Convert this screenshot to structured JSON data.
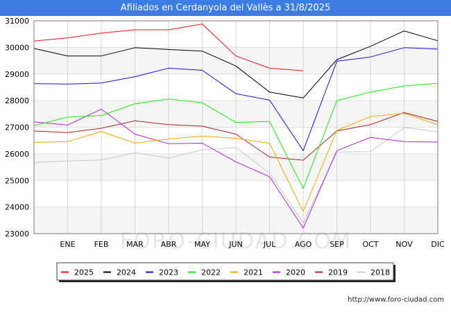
{
  "chart_data": {
    "type": "line",
    "title": "Afiliados en Cerdanyola del Vallès a 31/8/2025",
    "categories": [
      "",
      "ENE",
      "FEB",
      "MAR",
      "ABR",
      "MAY",
      "JUN",
      "JUL",
      "AGO",
      "SEP",
      "OCT",
      "NOV",
      "DIC"
    ],
    "ylim": [
      23000,
      31000
    ],
    "yticks": [
      23000,
      24000,
      25000,
      26000,
      27000,
      28000,
      29000,
      30000,
      31000
    ],
    "grid": true,
    "legend_position": "bottom",
    "series": [
      {
        "name": "2025",
        "color": "#ee1111",
        "values": [
          30240,
          30360,
          30540,
          30660,
          30660,
          30880,
          29680,
          29220,
          29120,
          null,
          null,
          null,
          null
        ]
      },
      {
        "name": "2024",
        "color": "#000000",
        "values": [
          29960,
          29680,
          29680,
          29990,
          29920,
          29860,
          29300,
          28320,
          28100,
          29540,
          30040,
          30620,
          30250
        ]
      },
      {
        "name": "2023",
        "color": "#1111dd",
        "values": [
          28640,
          28620,
          28660,
          28900,
          29220,
          29140,
          28260,
          28020,
          26120,
          29480,
          29640,
          29990,
          29940
        ]
      },
      {
        "name": "2022",
        "color": "#11ee11",
        "values": [
          27060,
          27380,
          27440,
          27880,
          28060,
          27920,
          27180,
          27220,
          24700,
          28000,
          28320,
          28550,
          28650
        ]
      },
      {
        "name": "2021",
        "color": "#f5a800",
        "values": [
          26430,
          26460,
          26840,
          26400,
          26560,
          26670,
          26580,
          26400,
          23840,
          26880,
          27400,
          27520,
          27100
        ]
      },
      {
        "name": "2020",
        "color": "#aa22dd",
        "values": [
          27200,
          27080,
          27680,
          26740,
          26380,
          26400,
          25700,
          25140,
          23210,
          26120,
          26620,
          26460,
          26440
        ]
      },
      {
        "name": "2019",
        "color": "#aa2222",
        "values": [
          26860,
          26800,
          26960,
          27240,
          27100,
          27040,
          26740,
          25880,
          25760,
          26860,
          27100,
          27550,
          27220
        ]
      },
      {
        "name": "2018",
        "color": "#c8c8c8",
        "values": [
          25680,
          25730,
          25770,
          26040,
          25840,
          26150,
          26240,
          25280,
          23400,
          26070,
          26080,
          26990,
          26830
        ]
      }
    ]
  },
  "watermark": "FORO-CIUDAD.COM",
  "footer_url": "http://www.foro-ciudad.com"
}
